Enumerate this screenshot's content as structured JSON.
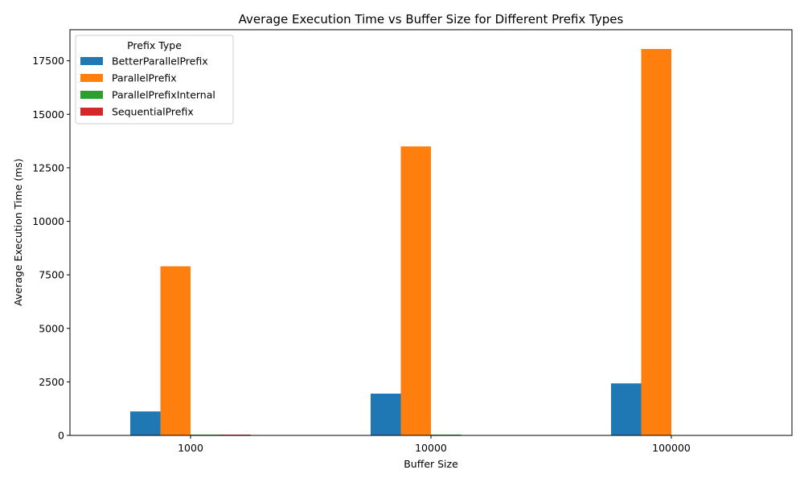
{
  "chart_data": {
    "type": "bar",
    "title": "Average Execution Time vs Buffer Size for Different Prefix Types",
    "xlabel": "Buffer Size",
    "ylabel": "Average Execution Time (ms)",
    "categories": [
      "1000",
      "10000",
      "100000"
    ],
    "ylim": [
      0,
      18950
    ],
    "yticks": [
      0,
      2500,
      5000,
      7500,
      10000,
      12500,
      15000,
      17500
    ],
    "legend_title": "Prefix Type",
    "legend_position": "top-left",
    "grid": false,
    "series": [
      {
        "name": "BetterParallelPrefix",
        "color": "#1f77b4",
        "values": [
          1120,
          1950,
          2430
        ]
      },
      {
        "name": "ParallelPrefix",
        "color": "#ff7f0e",
        "values": [
          7900,
          13500,
          18050
        ]
      },
      {
        "name": "ParallelPrefixInternal",
        "color": "#2ca02c",
        "values": [
          25,
          30,
          null
        ]
      },
      {
        "name": "SequentialPrefix",
        "color": "#d62728",
        "values": [
          20,
          null,
          null
        ]
      }
    ]
  }
}
